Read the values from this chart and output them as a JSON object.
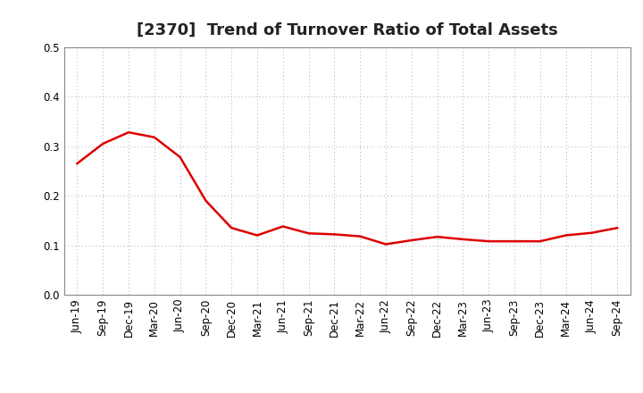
{
  "title": "[2370]  Trend of Turnover Ratio of Total Assets",
  "x_labels": [
    "Jun-19",
    "Sep-19",
    "Dec-19",
    "Mar-20",
    "Jun-20",
    "Sep-20",
    "Dec-20",
    "Mar-21",
    "Jun-21",
    "Sep-21",
    "Dec-21",
    "Mar-22",
    "Jun-22",
    "Sep-22",
    "Dec-22",
    "Mar-23",
    "Jun-23",
    "Sep-23",
    "Dec-23",
    "Mar-24",
    "Jun-24",
    "Sep-24"
  ],
  "values": [
    0.265,
    0.305,
    0.328,
    0.318,
    0.278,
    0.19,
    0.135,
    0.12,
    0.138,
    0.124,
    0.122,
    0.118,
    0.102,
    0.11,
    0.117,
    0.112,
    0.108,
    0.108,
    0.108,
    0.12,
    0.125,
    0.135
  ],
  "line_color": "#dd0000",
  "line_width": 1.8,
  "ylim": [
    0.0,
    0.5
  ],
  "yticks": [
    0.0,
    0.1,
    0.2,
    0.3,
    0.4,
    0.5
  ],
  "grid_color": "#aaaaaa",
  "background_color": "#ffffff",
  "title_fontsize": 13,
  "tick_fontsize": 8.5
}
